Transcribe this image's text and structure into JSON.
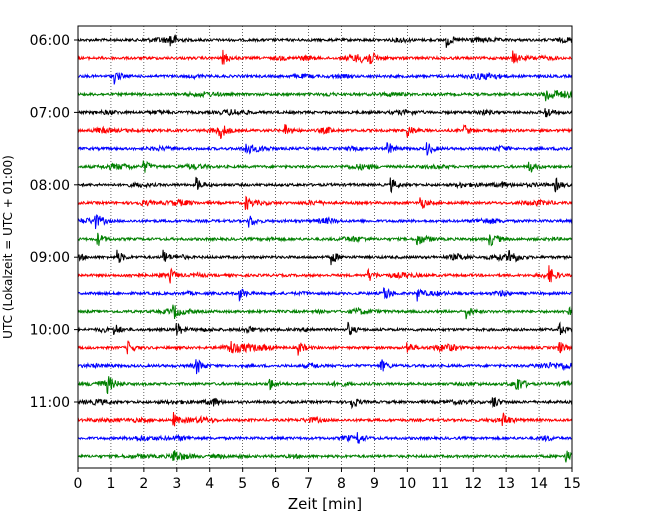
{
  "chart_data": {
    "type": "line",
    "xlabel": "Zeit  [min]",
    "ylabel": "UTC (Lokalzeit = UTC + 01:00)",
    "xlim": [
      0,
      15
    ],
    "x_ticks": [
      0,
      1,
      2,
      3,
      4,
      5,
      6,
      7,
      8,
      9,
      10,
      11,
      12,
      13,
      14,
      15
    ],
    "y_tick_labels": [
      "06:00",
      "07:00",
      "08:00",
      "09:00",
      "10:00",
      "11:00"
    ],
    "grid": "vertical dotted at each minute",
    "trace_interval_minutes": 15,
    "color_cycle": [
      "#000000",
      "#ff0000",
      "#0000ff",
      "#008000"
    ],
    "series": [
      {
        "start": "06:00",
        "events_min": [
          2.8,
          11.2
        ]
      },
      {
        "start": "06:15",
        "events_min": [
          4.4,
          8.8,
          13.2
        ]
      },
      {
        "start": "06:30",
        "events_min": [
          1.1
        ]
      },
      {
        "start": "06:45",
        "events_min": [
          14.2
        ]
      },
      {
        "start": "07:00",
        "events_min": [
          14.2
        ]
      },
      {
        "start": "07:15",
        "events_min": [
          4.3,
          6.3,
          10.0,
          11.7
        ]
      },
      {
        "start": "07:30",
        "events_min": [
          5.1,
          9.4,
          10.6
        ]
      },
      {
        "start": "07:45",
        "events_min": [
          2.0,
          13.7
        ]
      },
      {
        "start": "08:00",
        "events_min": [
          3.6,
          9.5,
          14.5
        ]
      },
      {
        "start": "08:15",
        "events_min": [
          5.1,
          10.4
        ]
      },
      {
        "start": "08:30",
        "events_min": [
          0.5,
          5.2
        ]
      },
      {
        "start": "08:45",
        "events_min": [
          0.6,
          10.3,
          12.5
        ]
      },
      {
        "start": "09:00",
        "events_min": [
          1.2,
          2.6,
          7.7,
          13.1
        ]
      },
      {
        "start": "09:15",
        "events_min": [
          2.8,
          8.8,
          14.3
        ]
      },
      {
        "start": "09:30",
        "events_min": [
          4.9,
          9.3,
          10.3
        ]
      },
      {
        "start": "09:45",
        "events_min": [
          2.9,
          11.8,
          14.9
        ]
      },
      {
        "start": "10:00",
        "events_min": [
          1.1,
          3.0,
          8.2,
          14.6
        ]
      },
      {
        "start": "10:15",
        "events_min": [
          1.5,
          4.6,
          6.7,
          10.0,
          14.6
        ]
      },
      {
        "start": "10:30",
        "events_min": [
          3.6,
          9.2
        ]
      },
      {
        "start": "10:45",
        "events_min": [
          0.9,
          5.8,
          13.3
        ]
      },
      {
        "start": "11:00",
        "events_min": [
          8.3,
          12.6
        ]
      },
      {
        "start": "11:15",
        "events_min": [
          2.9,
          12.9
        ]
      },
      {
        "start": "11:30",
        "events_min": [
          8.5
        ]
      },
      {
        "start": "11:45",
        "events_min": [
          2.9,
          14.8
        ]
      }
    ]
  }
}
